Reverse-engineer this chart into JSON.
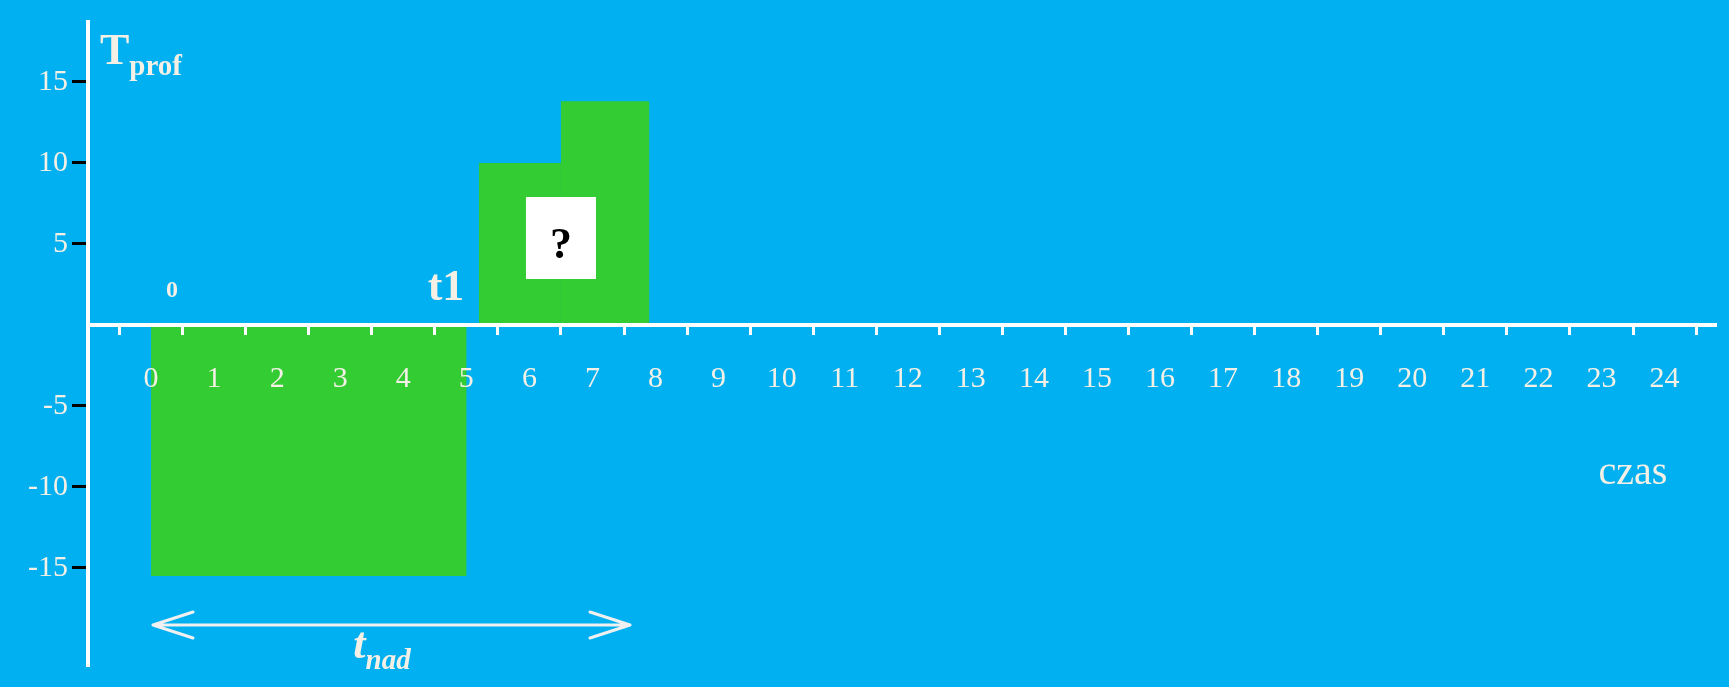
{
  "chart_data": {
    "type": "histogram",
    "bins": [
      0,
      5,
      5.2,
      6.5,
      7.9
    ],
    "values": [
      -15.5,
      null,
      10,
      13.8
    ],
    "color": "#33cc33",
    "xlim": [
      -1,
      24.8
    ],
    "ylim": [
      -21,
      18.7
    ],
    "xticks": [
      0,
      1,
      2,
      3,
      4,
      5,
      6,
      7,
      8,
      9,
      10,
      11,
      12,
      13,
      14,
      15,
      16,
      17,
      18,
      19,
      20,
      21,
      22,
      23,
      24
    ],
    "yticks": [
      -15,
      -10,
      -5,
      5,
      10,
      15
    ],
    "xlabel": "czas",
    "ylabel": "T$_{prof}$",
    "annotations": [
      "0",
      "t1",
      {
        "text": "?",
        "x": 6.5,
        "y": 5
      },
      "t$_{nad}$"
    ]
  }
}
